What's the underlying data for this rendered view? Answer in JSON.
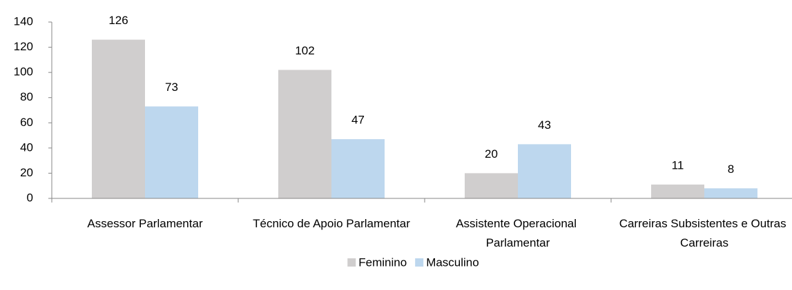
{
  "chart_data": {
    "type": "bar",
    "categories": [
      "Assessor Parlamentar",
      "Técnico de Apoio Parlamentar",
      "Assistente Operacional Parlamentar",
      "Carreiras Subsistentes e Outras Carreiras"
    ],
    "series": [
      {
        "name": "Feminino",
        "color": "#d0cece",
        "values": [
          126,
          102,
          20,
          11
        ]
      },
      {
        "name": "Masculino",
        "color": "#bdd7ee",
        "values": [
          73,
          47,
          43,
          8
        ]
      }
    ],
    "ylim": [
      0,
      140
    ],
    "yticks": [
      0,
      20,
      40,
      60,
      80,
      100,
      120,
      140
    ],
    "legend": "bottom"
  }
}
